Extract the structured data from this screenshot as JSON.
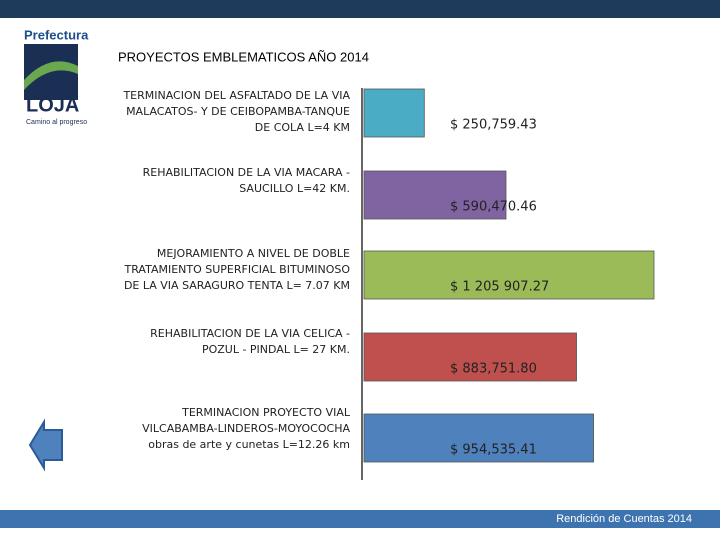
{
  "header": {
    "logo": {
      "name": "Prefectura",
      "title": "LOJA",
      "slogan": "Camino al progreso"
    }
  },
  "chart_data": {
    "type": "bar",
    "orientation": "horizontal",
    "title": "PROYECTOS EMBLEMATICOS AÑO 2014",
    "categories": [
      "TERMINACION DEL ASFALTADO DE LA VIA MALACATOS- Y DE CEIBOPAMBA-TANQUE DE COLA L=4 KM",
      "REHABILITACION DE LA VIA MACARA - SAUCILLO L=42 KM.",
      "MEJORAMIENTO A NIVEL DE DOBLE TRATAMIENTO SUPERFICIAL BITUMINOSO DE LA VIA SARAGURO TENTA L= 7.07 KM",
      "REHABILITACION DE LA VIA CELICA - POZUL - PINDAL L= 27 KM.",
      "TERMINACION PROYECTO VIAL VILCABAMBA-LINDEROS-MOYOCOCHA obras de arte y cunetas L=12.26 km"
    ],
    "values": [
      250759.43,
      590470.46,
      1205907.27,
      883751.8,
      954535.41
    ],
    "value_labels": [
      "$ 250,759.43",
      "$ 590,470.46",
      "$ 1 205 907.27",
      "$ 883,751.80",
      "$ 954,535.41"
    ],
    "colors": [
      "#4bacc6",
      "#8064a2",
      "#9bbb59",
      "#c0504d",
      "#4f81bd"
    ]
  },
  "footer": {
    "text": "Rendición de Cuentas 2014"
  }
}
